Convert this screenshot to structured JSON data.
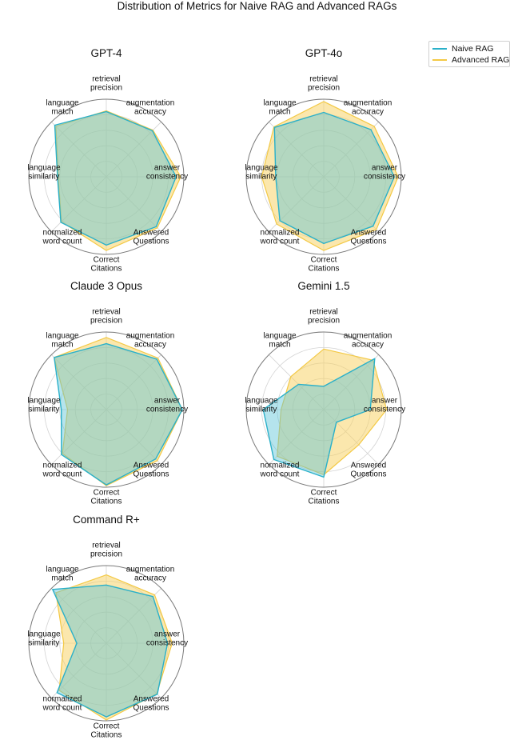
{
  "title": "Distribution of Metrics for Naive RAG and Advanced RAGs",
  "colors": {
    "naive": "#2ab0c9",
    "advanced": "#f3c945",
    "advanced_fill": "#f7d46a",
    "naive_fill": "#5cc4d8",
    "grid": "#d3d3d3",
    "frame": "#7a7a7a"
  },
  "legend": {
    "placement": "top-right",
    "naive_label": "Naive RAG",
    "advanced_label": "Advanced RAG"
  },
  "chart_data": [
    {
      "type": "radar",
      "title": "GPT-4",
      "axes": [
        "retrieval\nprecision",
        "augmentation\naccuracy",
        "answer\nconsistency",
        "Answered\nQuestions",
        "Correct\nCitations",
        "normalized\nword count",
        "language\nsimilarity",
        "language\nmatch"
      ],
      "rlim": [
        0,
        1
      ],
      "grid": true,
      "series": [
        {
          "name": "Naive RAG",
          "values": [
            0.84,
            0.84,
            0.9,
            0.91,
            0.88,
            0.83,
            0.63,
            0.94
          ]
        },
        {
          "name": "Advanced RAG",
          "values": [
            0.85,
            0.85,
            0.96,
            0.93,
            0.95,
            0.82,
            0.62,
            0.92
          ]
        }
      ]
    },
    {
      "type": "radar",
      "title": "GPT-4o",
      "axes": [
        "retrieval\nprecision",
        "augmentation\naccuracy",
        "answer\nconsistency",
        "Answered\nQuestions",
        "Correct\nCitations",
        "normalized\nword count",
        "language\nsimilarity",
        "language\nmatch"
      ],
      "rlim": [
        0,
        1
      ],
      "grid": true,
      "series": [
        {
          "name": "Naive RAG",
          "values": [
            0.83,
            0.86,
            0.91,
            0.9,
            0.86,
            0.8,
            0.62,
            0.9
          ]
        },
        {
          "name": "Advanced RAG",
          "values": [
            0.97,
            0.92,
            0.96,
            0.96,
            0.95,
            0.86,
            0.8,
            0.91
          ]
        }
      ]
    },
    {
      "type": "radar",
      "title": "Claude 3 Opus",
      "axes": [
        "retrieval\nprecision",
        "augmentation\naccuracy",
        "answer\nconsistency",
        "Answered\nQuestions",
        "Correct\nCitations",
        "normalized\nword count",
        "language\nsimilarity",
        "language\nmatch"
      ],
      "rlim": [
        0,
        1
      ],
      "grid": true,
      "series": [
        {
          "name": "Naive RAG",
          "values": [
            0.85,
            0.92,
            0.98,
            0.9,
            0.97,
            0.82,
            0.58,
            0.95
          ]
        },
        {
          "name": "Advanced RAG",
          "values": [
            0.93,
            0.94,
            0.98,
            0.93,
            0.98,
            0.8,
            0.5,
            0.95
          ]
        }
      ]
    },
    {
      "type": "radar",
      "title": "Gemini 1.5",
      "axes": [
        "retrieval\nprecision",
        "augmentation\naccuracy",
        "answer\nconsistency",
        "Answered\nQuestions",
        "Correct\nCitations",
        "normalized\nword count",
        "language\nsimilarity",
        "language\nmatch"
      ],
      "rlim": [
        0,
        1
      ],
      "grid": true,
      "series": [
        {
          "name": "Naive RAG",
          "values": [
            0.3,
            0.93,
            0.6,
            0.23,
            0.87,
            0.91,
            0.78,
            0.46
          ]
        },
        {
          "name": "Advanced RAG",
          "values": [
            0.78,
            0.9,
            0.81,
            0.64,
            0.84,
            0.85,
            0.55,
            0.6
          ]
        }
      ]
    },
    {
      "type": "radar",
      "title": "Command R+",
      "axes": [
        "retrieval\nprecision",
        "augmentation\naccuracy",
        "answer\nconsistency",
        "Answered\nQuestions",
        "Correct\nCitations",
        "normalized\nword count",
        "language\nsimilarity",
        "language\nmatch"
      ],
      "rlim": [
        0,
        1
      ],
      "grid": true,
      "series": [
        {
          "name": "Naive RAG",
          "values": [
            0.75,
            0.85,
            0.79,
            0.93,
            0.95,
            0.9,
            0.38,
            0.98
          ]
        },
        {
          "name": "Advanced RAG",
          "values": [
            0.88,
            0.88,
            0.85,
            0.92,
            0.99,
            0.86,
            0.55,
            0.92
          ]
        }
      ]
    }
  ]
}
